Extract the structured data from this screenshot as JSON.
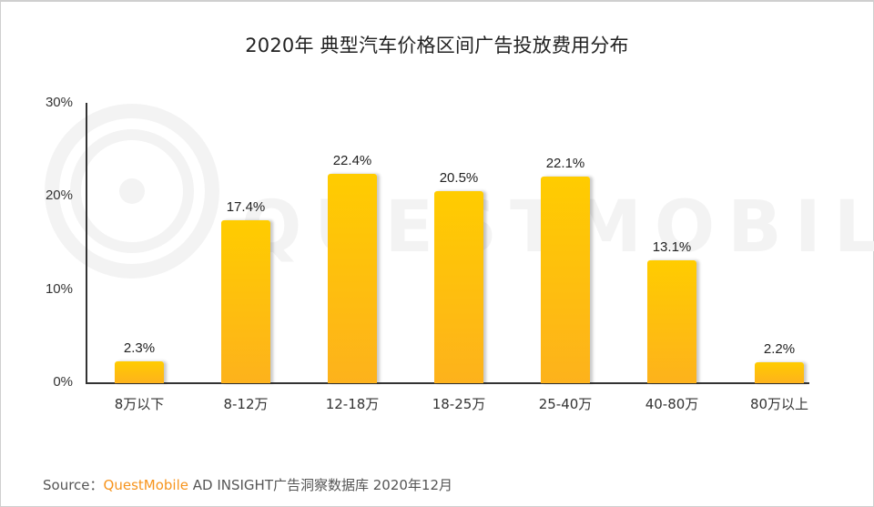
{
  "title": "2020年 典型汽车价格区间广告投放费用分布",
  "watermark": {
    "text": "QUESTMOBILE",
    "icon": "questmobile-logo-icon"
  },
  "source": {
    "prefix": "Source：",
    "brand": "QuestMobile",
    "rest": " AD INSIGHT广告洞察数据库 2020年12月"
  },
  "colors": {
    "bar_top": "#ffcc00",
    "bar_bottom": "#fdb21c",
    "brand": "#f7941d"
  },
  "yaxis": {
    "ticks": [
      "30%",
      "20%",
      "10%",
      "0%"
    ]
  },
  "bars": [
    {
      "label": "8万以下",
      "value": 2.3,
      "text": "2.3%"
    },
    {
      "label": "8-12万",
      "value": 17.4,
      "text": "17.4%"
    },
    {
      "label": "12-18万",
      "value": 22.4,
      "text": "22.4%"
    },
    {
      "label": "18-25万",
      "value": 20.5,
      "text": "20.5%"
    },
    {
      "label": "25-40万",
      "value": 22.1,
      "text": "22.1%"
    },
    {
      "label": "40-80万",
      "value": 13.1,
      "text": "13.1%"
    },
    {
      "label": "80万以上",
      "value": 2.2,
      "text": "2.2%"
    }
  ],
  "chart_data": {
    "type": "bar",
    "title": "2020年 典型汽车价格区间广告投放费用分布",
    "categories": [
      "8万以下",
      "8-12万",
      "12-18万",
      "18-25万",
      "25-40万",
      "40-80万",
      "80万以上"
    ],
    "values": [
      2.3,
      17.4,
      22.4,
      20.5,
      22.1,
      13.1,
      2.2
    ],
    "xlabel": "",
    "ylabel": "",
    "ylim": [
      0,
      30
    ],
    "yticks": [
      "0%",
      "10%",
      "20%",
      "30%"
    ],
    "grid": false,
    "legend": null,
    "data_labels": [
      "2.3%",
      "17.4%",
      "22.4%",
      "20.5%",
      "22.1%",
      "13.1%",
      "2.2%"
    ],
    "annotation": "Source：QuestMobile AD INSIGHT广告洞察数据库 2020年12月"
  }
}
